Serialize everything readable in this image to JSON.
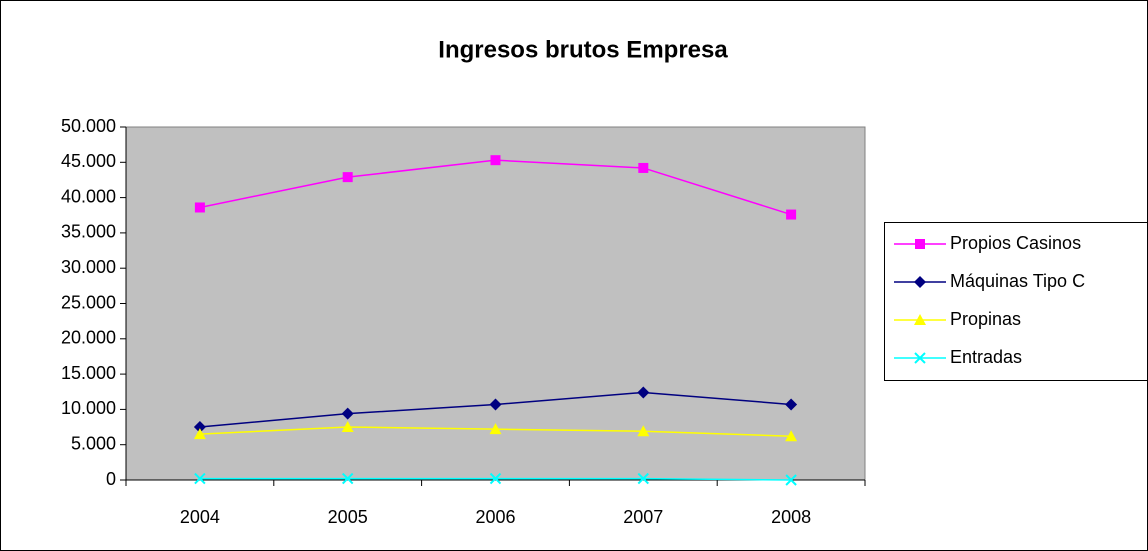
{
  "chart_data": {
    "type": "line",
    "title": "Ingresos brutos Empresa",
    "categories": [
      "2004",
      "2005",
      "2006",
      "2007",
      "2008"
    ],
    "ylim": [
      0,
      50000
    ],
    "yticks": [
      0,
      {
        "value": 5000,
        "label": "5.000"
      },
      {
        "value": 10000,
        "label": "10.000"
      },
      {
        "value": 15000,
        "label": "15.000"
      },
      {
        "value": 20000,
        "label": "20.000"
      },
      {
        "value": 25000,
        "label": "25.000"
      },
      {
        "value": 30000,
        "label": "30.000"
      },
      {
        "value": 35000,
        "label": "35.000"
      },
      {
        "value": 40000,
        "label": "40.000"
      },
      {
        "value": 45000,
        "label": "45.000"
      },
      {
        "value": 50000,
        "label": "50.000"
      }
    ],
    "grid": false,
    "legend": "right",
    "plot_background": "#c0c0c0",
    "series": [
      {
        "name": "Propios Casinos",
        "color": "#ff00ff",
        "marker": "square",
        "values": [
          38600,
          42900,
          45300,
          44200,
          37600
        ]
      },
      {
        "name": "Máquinas Tipo C",
        "color": "#000080",
        "marker": "diamond",
        "values": [
          7500,
          9400,
          10700,
          12400,
          10700
        ]
      },
      {
        "name": "Propinas",
        "color": "#ffff00",
        "marker": "triangle",
        "values": [
          6500,
          7500,
          7200,
          6900,
          6200
        ]
      },
      {
        "name": "Entradas",
        "color": "#00ffff",
        "marker": "x",
        "values": [
          200,
          200,
          200,
          200,
          0
        ]
      }
    ]
  }
}
